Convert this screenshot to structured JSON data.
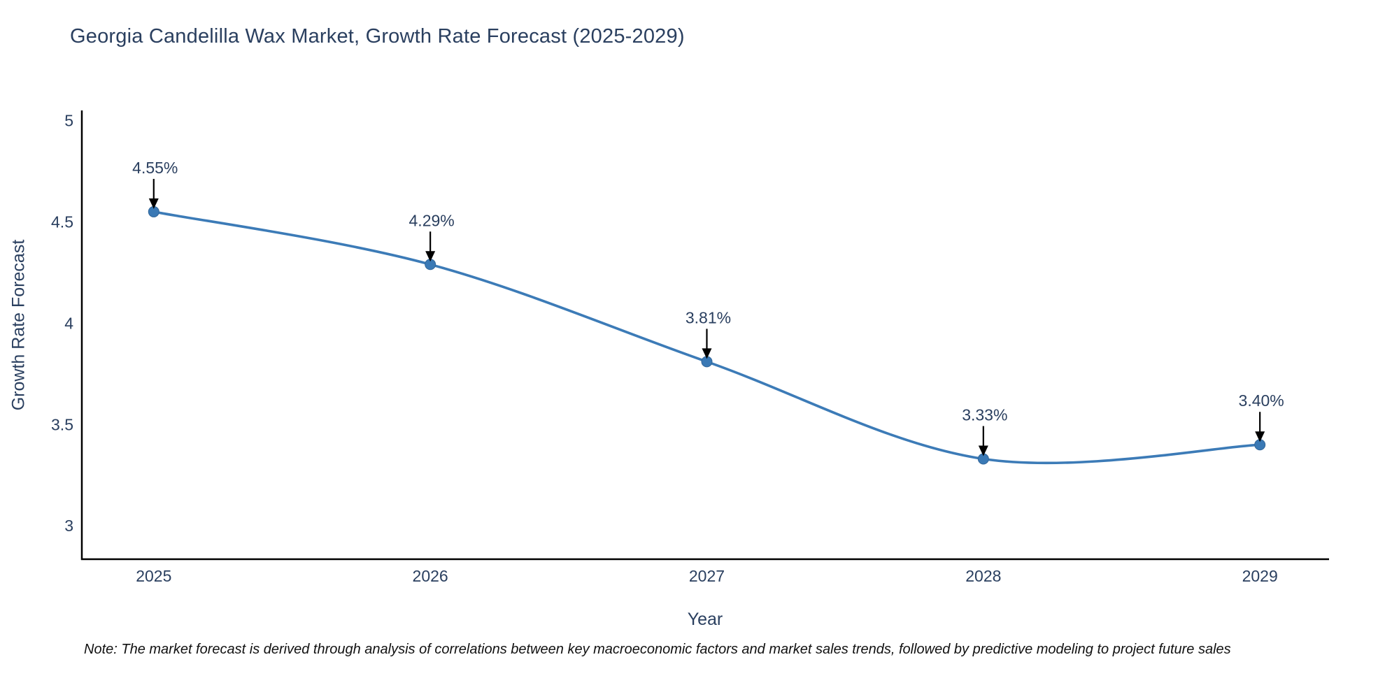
{
  "chart": {
    "note": "Note: The market forecast is derived through analysis of correlations between key macroeconomic factors and market sales trends, followed by predictive modeling to project future sales",
    "colors": {
      "line": "#3c7bb7",
      "marker": "#3a79b5",
      "marker_edge": "#326699",
      "axis": "#000000",
      "tick_text": "#2a3f5f",
      "annotation_text": "#2a3f5f",
      "arrow": "#000000",
      "background": "#ffffff"
    }
  },
  "chart_data": {
    "type": "line",
    "title": "Georgia Candelilla Wax Market, Growth Rate Forecast (2025-2029)",
    "xlabel": "Year",
    "ylabel": "Growth Rate Forecast",
    "x": [
      2025,
      2026,
      2027,
      2028,
      2029
    ],
    "categories": [
      "2025",
      "2026",
      "2027",
      "2028",
      "2029"
    ],
    "values": [
      4.55,
      4.29,
      3.81,
      3.33,
      3.4
    ],
    "point_labels": [
      "4.55%",
      "4.29%",
      "3.81%",
      "3.33%",
      "3.40%"
    ],
    "series_name": "Growth Rate Forecast",
    "yticks": [
      3,
      3.5,
      4,
      4.5,
      5
    ],
    "ytick_labels": [
      "3",
      "3.5",
      "4",
      "4.5",
      "5"
    ],
    "xlim": [
      2024.74,
      2029.25
    ],
    "ylim": [
      2.835,
      5.05
    ],
    "line_shape": "spline",
    "grid": false,
    "legend": false,
    "annotations": "value labels with downward arrows above each point"
  }
}
